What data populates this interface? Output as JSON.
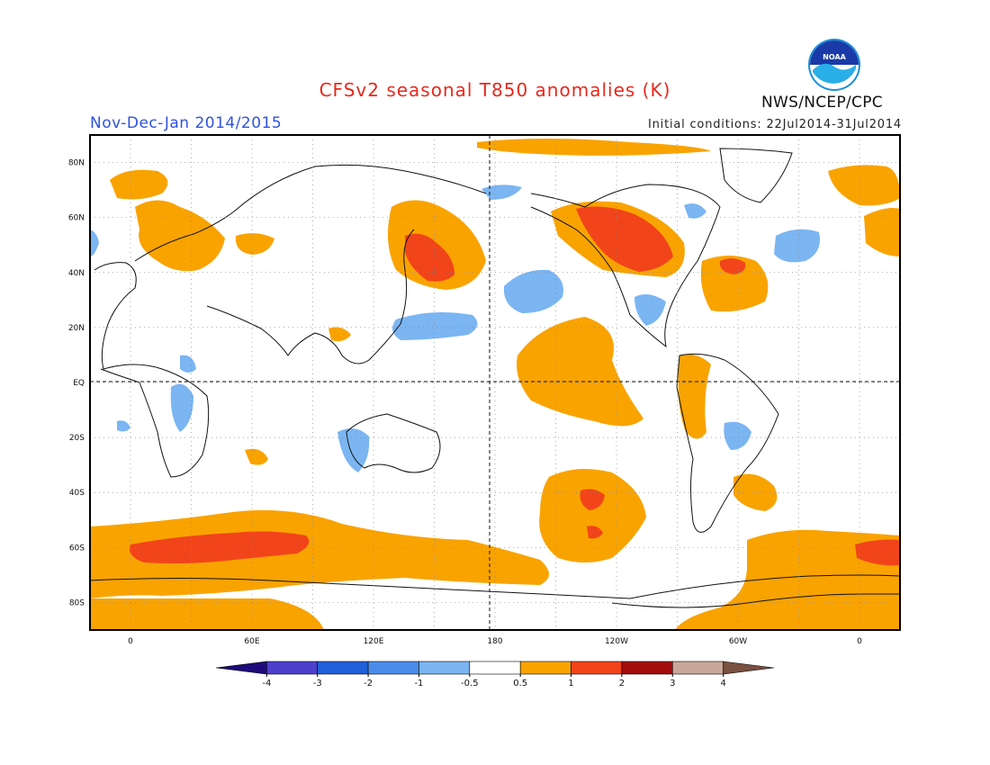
{
  "header": {
    "title": "CFSv2 seasonal T850 anomalies (K)",
    "period": "Nov-Dec-Jan 2014/2015",
    "initial_conditions": "Initial conditions: 22Jul2014-31Jul2014",
    "agency": "NWS/NCEP/CPC",
    "logo_text": "NOAA"
  },
  "map": {
    "projection": "cylindrical equidistant",
    "latitude_labels": [
      "80N",
      "60N",
      "40N",
      "20N",
      "EQ",
      "20S",
      "40S",
      "60S",
      "80S"
    ],
    "longitude_labels": [
      "0",
      "60E",
      "120E",
      "180",
      "120W",
      "60W",
      "0"
    ],
    "grid": true,
    "colors": {
      "positive_0_5_1": "#f9a300",
      "positive_1_2": "#f2441a",
      "negative_0_5_1": "#7bb5f2",
      "land_outline": "#111111"
    }
  },
  "colorbar": {
    "labels": [
      "-4",
      "-3",
      "-2",
      "-1",
      "-0.5",
      "0.5",
      "1",
      "2",
      "3",
      "4"
    ],
    "colors": [
      "#1e0a7a",
      "#4b3fcc",
      "#2060d8",
      "#4a8cea",
      "#7bb5f2",
      "#ffffff",
      "#f9a300",
      "#f2441a",
      "#a50c0c",
      "#c9a899",
      "#7a5040"
    ]
  }
}
